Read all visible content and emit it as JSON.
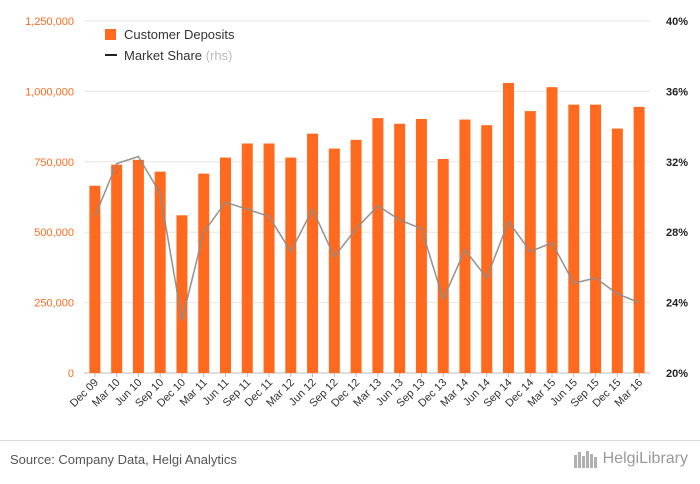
{
  "chart_data": {
    "type": "bar",
    "categories": [
      "Dec 09",
      "Mar 10",
      "Jun 10",
      "Sep 10",
      "Dec 10",
      "Mar 11",
      "Jun 11",
      "Sep 11",
      "Dec 11",
      "Mar 12",
      "Jun 12",
      "Sep 12",
      "Dec 12",
      "Mar 13",
      "Jun 13",
      "Sep 13",
      "Dec 13",
      "Mar 14",
      "Jun 14",
      "Sep 14",
      "Dec 14",
      "Mar 15",
      "Jun 15",
      "Sep 15",
      "Dec 15",
      "Mar 16"
    ],
    "series": [
      {
        "name": "Customer Deposits",
        "type": "bar",
        "axis": "left",
        "color": "#ff6a1f",
        "values": [
          665000,
          740000,
          757000,
          715000,
          560000,
          708000,
          765000,
          815000,
          815000,
          765000,
          850000,
          797000,
          828000,
          905000,
          885000,
          902000,
          760000,
          900000,
          880000,
          1030000,
          930000,
          1015000,
          953000,
          953000,
          868000,
          945000
        ]
      },
      {
        "name": "Market Share",
        "suffix": "(rhs)",
        "type": "line",
        "axis": "right",
        "color": "#8c8c8c",
        "values": [
          28.9,
          31.9,
          32.3,
          30.2,
          23.0,
          28.0,
          29.7,
          29.3,
          28.9,
          26.9,
          29.3,
          26.6,
          28.2,
          29.5,
          28.7,
          28.2,
          24.2,
          27.0,
          25.4,
          28.6,
          26.9,
          27.4,
          25.1,
          25.4,
          24.5,
          24.0
        ]
      }
    ],
    "left_axis": {
      "min": 0,
      "max": 1250000,
      "ticks": [
        "0",
        "250,000",
        "500,000",
        "750,000",
        "1,000,000",
        "1,250,000"
      ],
      "color": "#ff6a1f"
    },
    "right_axis": {
      "min": 20,
      "max": 40,
      "ticks": [
        "20%",
        "24%",
        "28%",
        "32%",
        "36%",
        "40%"
      ]
    },
    "legend_position": "top-left",
    "grid": true
  },
  "footer": {
    "source": "Source: Company Data, Helgi Analytics",
    "brand": "HelgiLibrary"
  },
  "icons": {
    "brand": "library-icon"
  }
}
